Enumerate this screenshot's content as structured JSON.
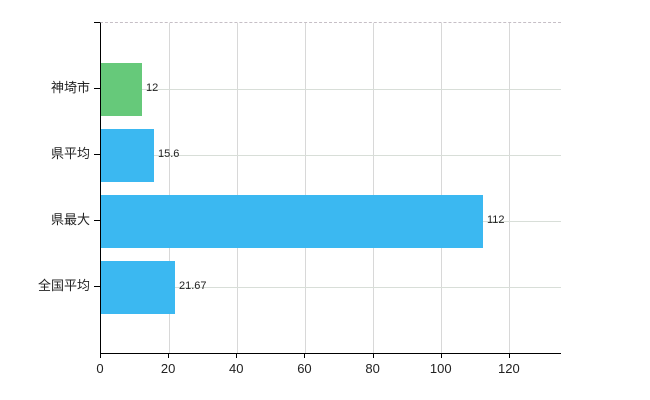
{
  "chart_data": {
    "type": "bar",
    "orientation": "horizontal",
    "title": "",
    "xlabel": "",
    "ylabel": "",
    "categories": [
      "神埼市",
      "県平均",
      "県最大",
      "全国平均"
    ],
    "values": [
      12,
      15.6,
      112,
      21.67
    ],
    "value_labels": [
      "12",
      "15.6",
      "112",
      "21.67"
    ],
    "bar_colors": [
      "#66c97a",
      "#3bb8f1",
      "#3bb8f1",
      "#3bb8f1"
    ],
    "x_ticks": [
      0,
      20,
      40,
      60,
      80,
      100,
      120
    ],
    "x_tick_labels": [
      "0",
      "20",
      "40",
      "60",
      "80",
      "100",
      "120"
    ],
    "xlim": [
      0,
      135
    ],
    "grid": true,
    "grid_horizontal": true,
    "grid_vertical": true,
    "legend": false
  },
  "colors": {
    "bar_green": "#66c97a",
    "bar_blue": "#3bb8f1",
    "axis": "#000000",
    "text": "#222222",
    "gridline_vertical": "#d8d8d8",
    "gridline_horizontal": "#d8ded8",
    "top_border_dashed": "#c6bfc6",
    "background": "#ffffff"
  }
}
